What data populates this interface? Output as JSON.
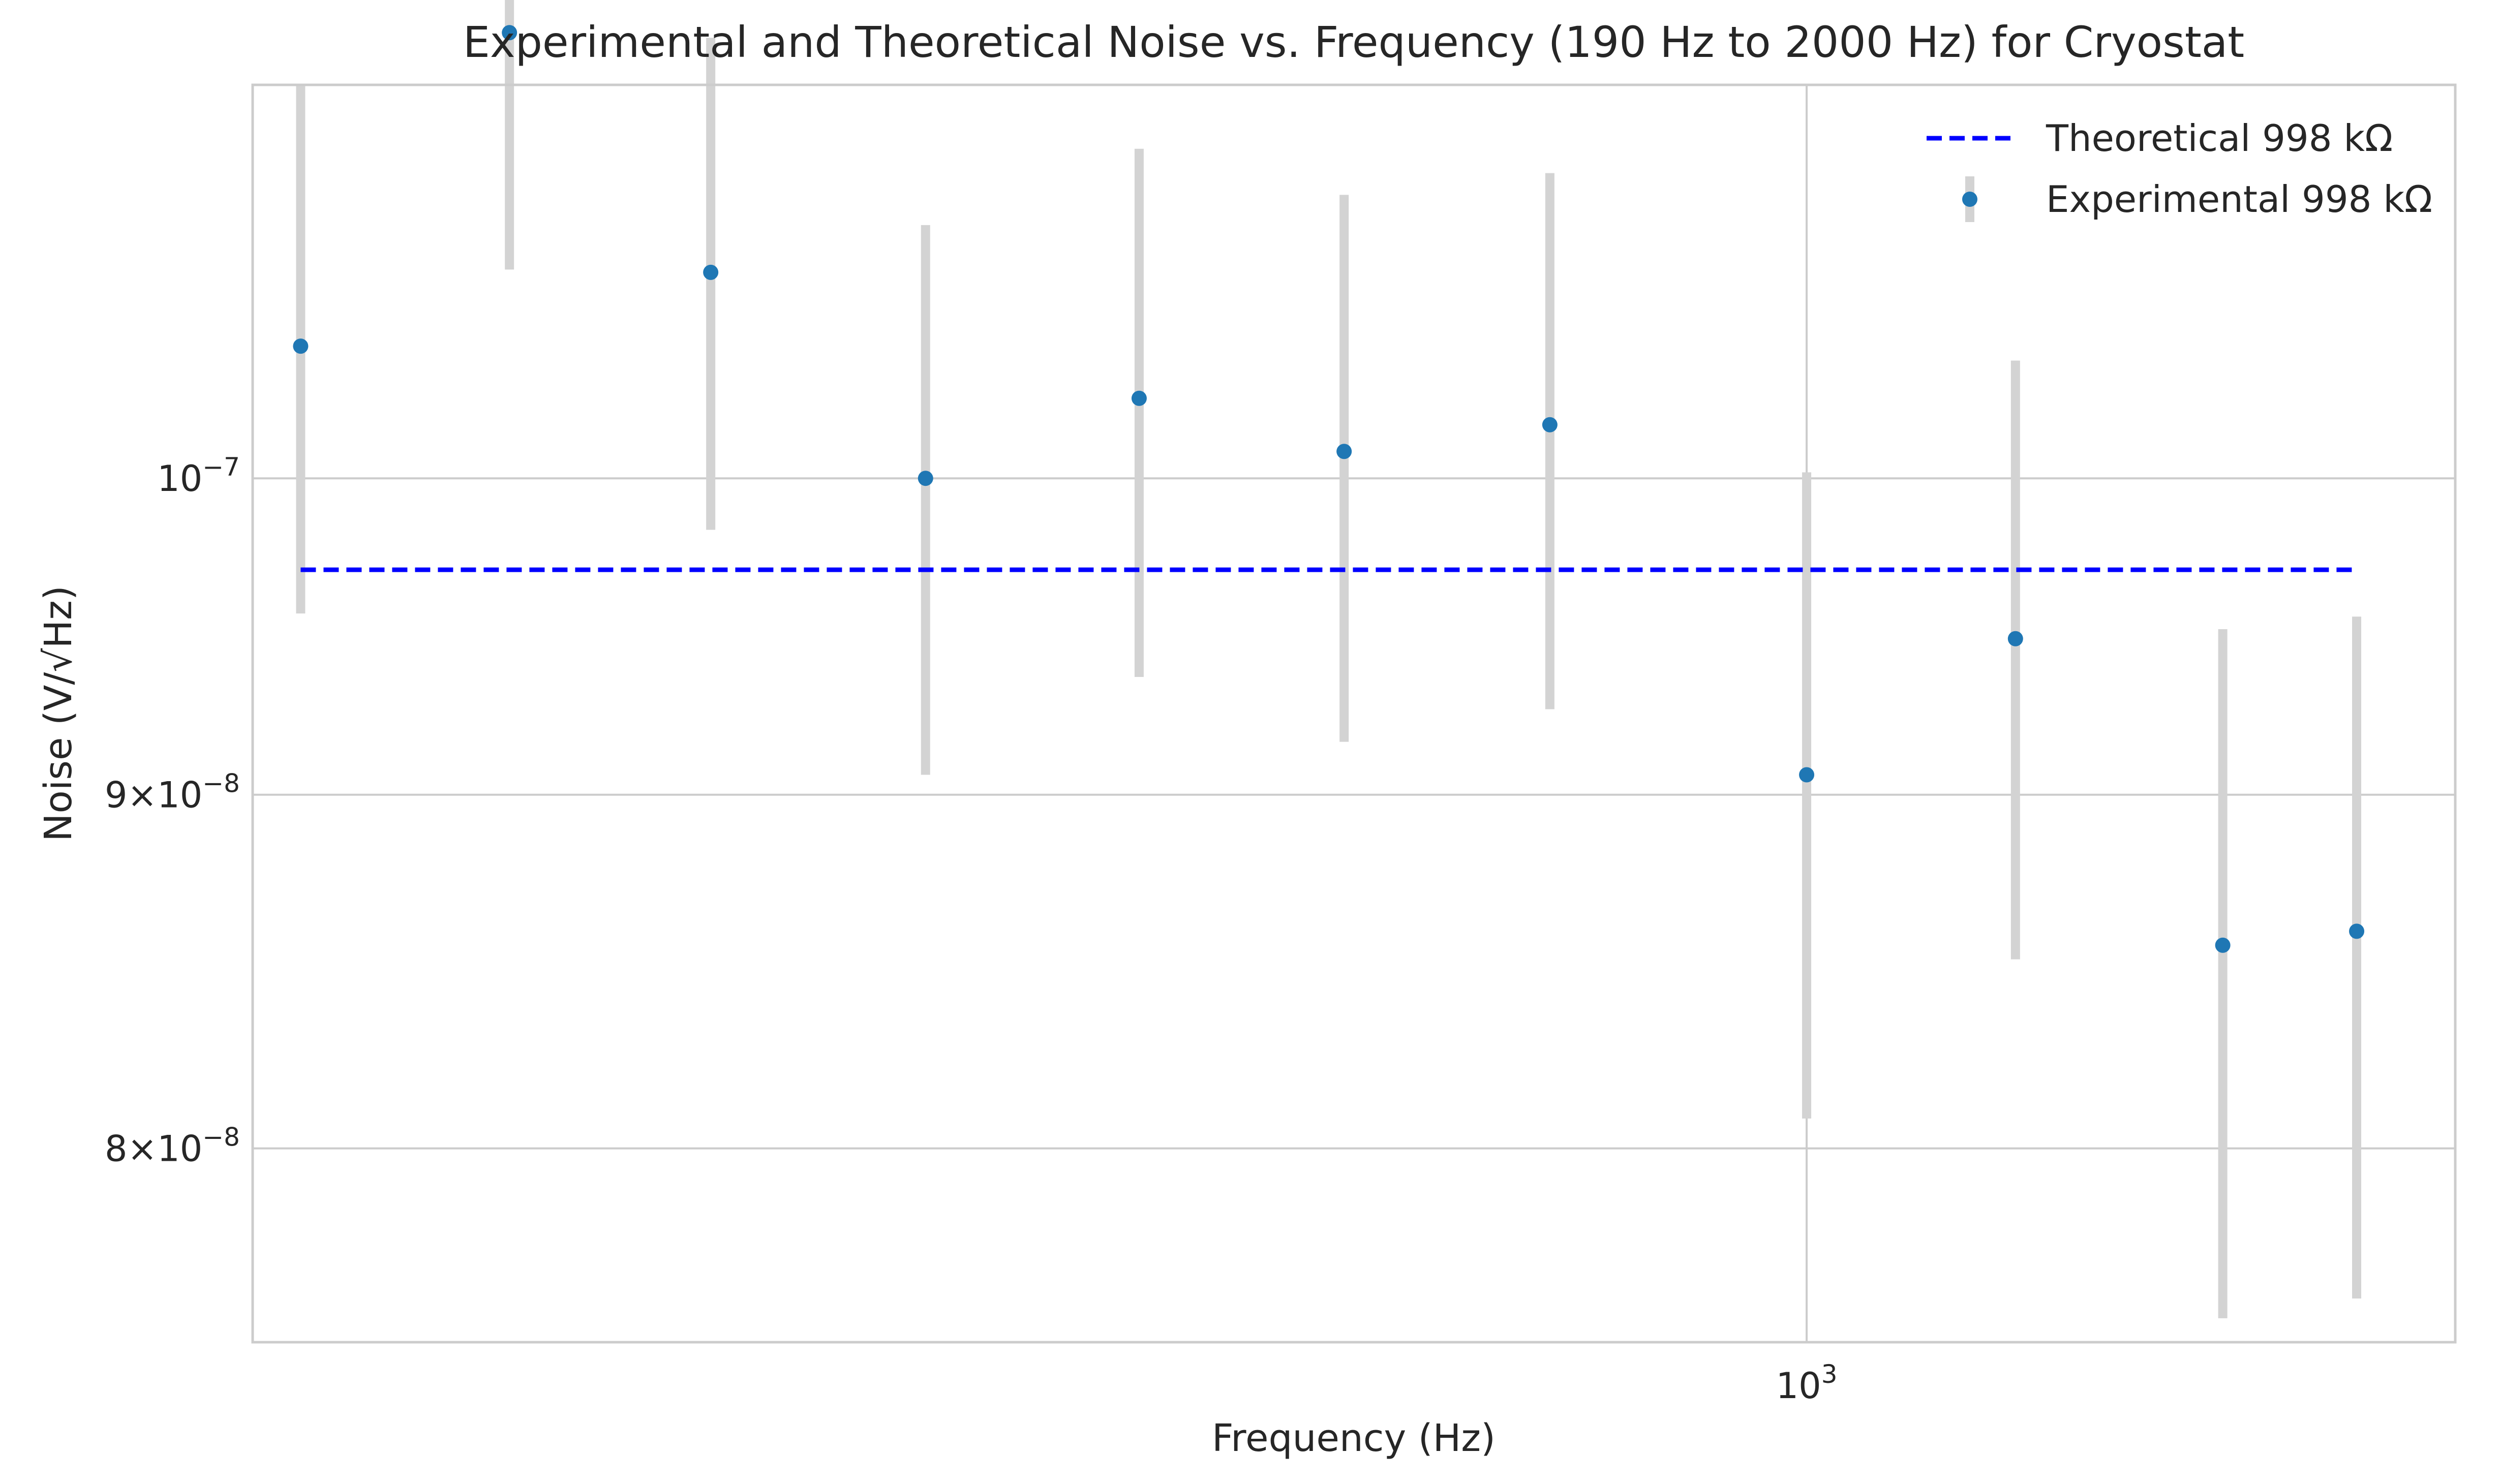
{
  "chart_data": {
    "type": "scatter",
    "title": "Experimental and Theoretical Noise vs. Frequency (190 Hz to 2000 Hz) for Cryostat",
    "xlabel": "Frequency (Hz)",
    "ylabel": "Noise (V/√Hz)",
    "x_scale": "log",
    "y_scale": "log",
    "xlim": [
      190,
      2000
    ],
    "ylim": [
      7.5e-08,
      1.14e-07
    ],
    "grid": true,
    "legend_position": "top-right",
    "x_ticks": [
      {
        "value": 1000,
        "label": "10^3"
      }
    ],
    "y_ticks": [
      {
        "value": 1e-07,
        "label": "10^−7"
      },
      {
        "value": 9e-08,
        "label": "9×10^−8"
      },
      {
        "value": 8e-08,
        "label": "8×10^−8"
      }
    ],
    "series": [
      {
        "name": "Theoretical 998 kΩ",
        "kind": "line",
        "style": "dashed",
        "color": "#0000ff",
        "x": [
          200,
          1800
        ],
        "y": [
          9.7e-08,
          9.7e-08
        ]
      },
      {
        "name": "Experimental 998 kΩ",
        "kind": "errorbar",
        "color": "#1f77b4",
        "errorbar_color": "#d3d3d3",
        "x": [
          200,
          250,
          310,
          390,
          490,
          610,
          760,
          1000,
          1250,
          1560,
          1800
        ],
        "y": [
          1.045e-07,
          1.16e-07,
          1.071e-07,
          1e-07,
          1.027e-07,
          1.009e-07,
          1.018e-07,
          9.06e-08,
          9.48e-08,
          8.56e-08,
          8.6e-08
        ],
        "y_lower": [
          9.56e-08,
          1.072e-07,
          9.83e-08,
          9.06e-08,
          9.36e-08,
          9.16e-08,
          9.26e-08,
          8.08e-08,
          8.52e-08,
          7.56e-08,
          7.61e-08
        ],
        "y_upper": [
          1.14e-07,
          1.25e-07,
          1.158e-07,
          1.088e-07,
          1.116e-07,
          1.099e-07,
          1.107e-07,
          1.002e-07,
          1.04e-07,
          9.51e-08,
          9.55e-08
        ]
      }
    ]
  }
}
